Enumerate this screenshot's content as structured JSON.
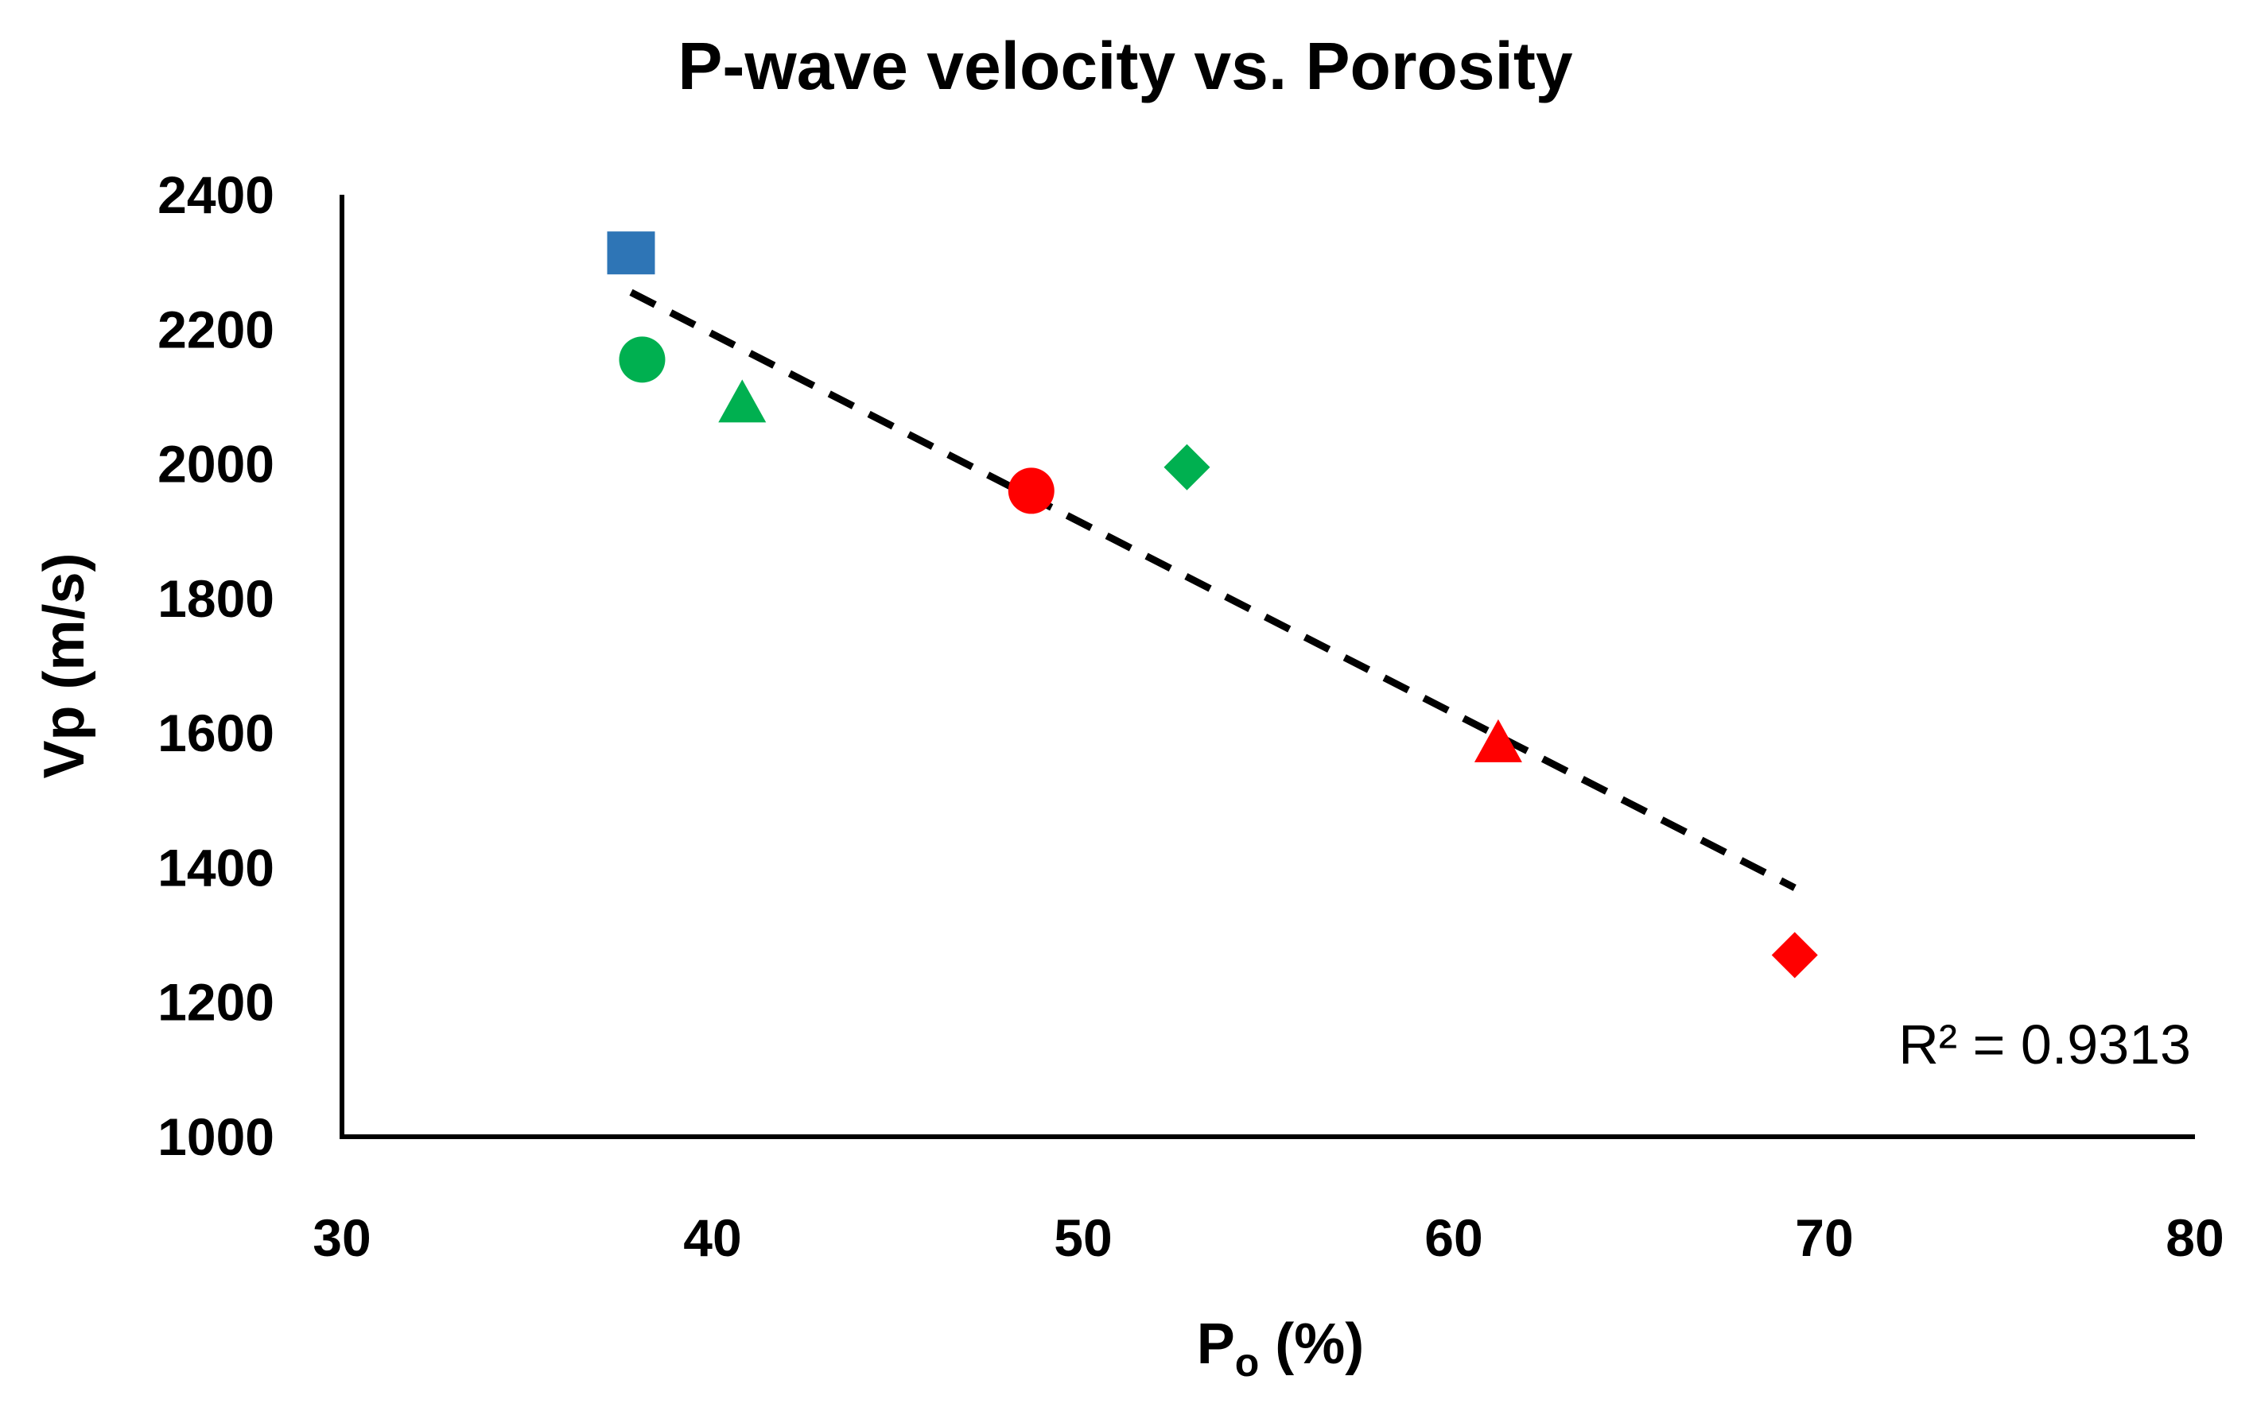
{
  "chart_data": {
    "type": "scatter",
    "title": "P-wave velocity vs. Porosity",
    "xlabel_main": "P",
    "xlabel_sub": "o",
    "xlabel_rest": " (%)",
    "ylabel": "Vp (m/s)",
    "xlim": [
      30,
      80
    ],
    "ylim": [
      1000,
      2400
    ],
    "xticks": [
      30,
      40,
      50,
      60,
      70,
      80
    ],
    "yticks": [
      1000,
      1200,
      1400,
      1600,
      1800,
      2000,
      2200,
      2400
    ],
    "grid": false,
    "points": [
      {
        "x": 37.8,
        "y": 2310,
        "shape": "square",
        "color": "#2e75b6"
      },
      {
        "x": 38.1,
        "y": 2155,
        "shape": "circle",
        "color": "#00b050"
      },
      {
        "x": 40.8,
        "y": 2090,
        "shape": "triangle",
        "color": "#00b050"
      },
      {
        "x": 48.6,
        "y": 1960,
        "shape": "circle",
        "color": "#ff0000"
      },
      {
        "x": 52.8,
        "y": 1995,
        "shape": "diamond",
        "color": "#00b050"
      },
      {
        "x": 61.2,
        "y": 1585,
        "shape": "triangle",
        "color": "#ff0000"
      },
      {
        "x": 69.2,
        "y": 1270,
        "shape": "diamond",
        "color": "#ff0000"
      }
    ],
    "trendline": {
      "type": "linear",
      "style": "dashed",
      "color": "#000000",
      "x_start": 37.8,
      "y_start": 2255,
      "x_end": 69.2,
      "y_end": 1370
    },
    "annotation": "R² = 0.9313"
  }
}
